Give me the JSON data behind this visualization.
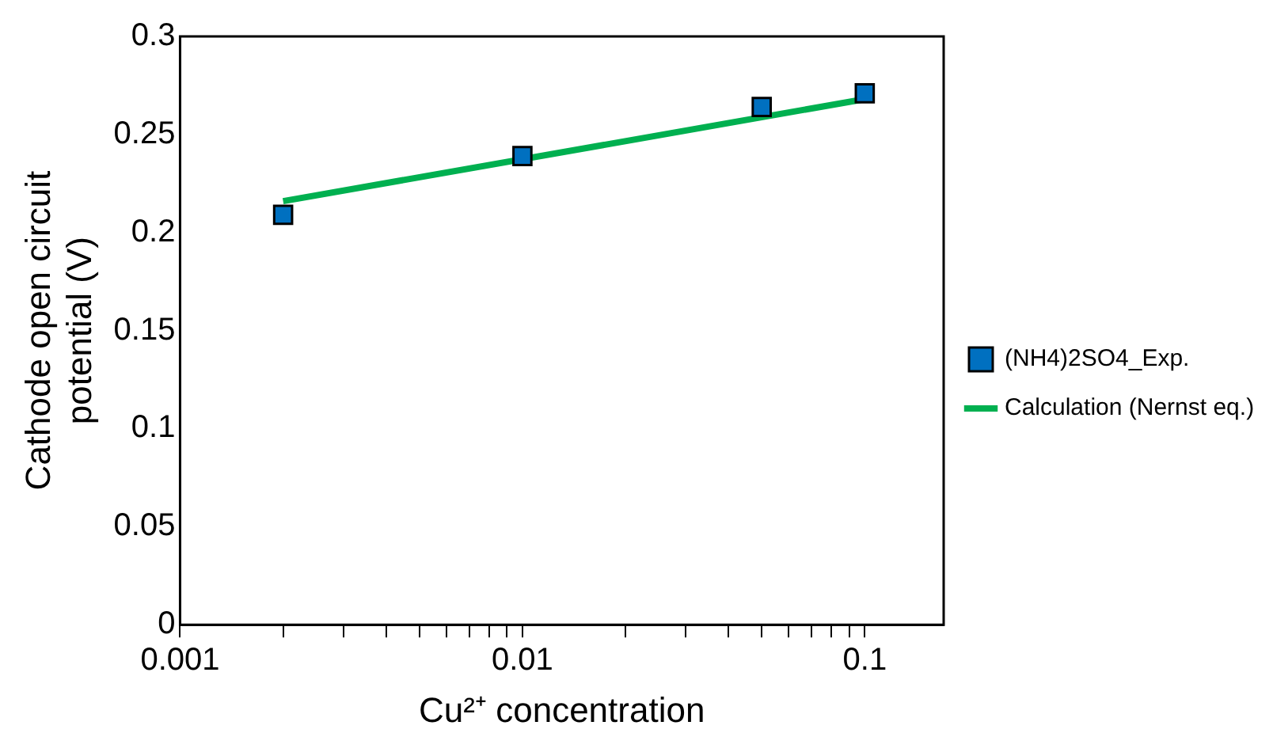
{
  "chart_data": {
    "type": "scatter",
    "xlabel": "Cu²⁺ concentration",
    "ylabel": "Cathode open circuit potential (V)",
    "log": "x",
    "xlim": [
      0.001,
      0.17
    ],
    "ylim": [
      0,
      0.3
    ],
    "xticks": [
      {
        "value": 0.001,
        "label": "0.001"
      },
      {
        "value": 0.002,
        "label": null
      },
      {
        "value": 0.003,
        "label": null
      },
      {
        "value": 0.004,
        "label": null
      },
      {
        "value": 0.005,
        "label": null
      },
      {
        "value": 0.006,
        "label": null
      },
      {
        "value": 0.007,
        "label": null
      },
      {
        "value": 0.008,
        "label": null
      },
      {
        "value": 0.009,
        "label": null
      },
      {
        "value": 0.01,
        "label": "0.01"
      },
      {
        "value": 0.02,
        "label": null
      },
      {
        "value": 0.03,
        "label": null
      },
      {
        "value": 0.04,
        "label": null
      },
      {
        "value": 0.05,
        "label": null
      },
      {
        "value": 0.06,
        "label": null
      },
      {
        "value": 0.07,
        "label": null
      },
      {
        "value": 0.08,
        "label": null
      },
      {
        "value": 0.09,
        "label": null
      },
      {
        "value": 0.1,
        "label": "0.1"
      }
    ],
    "yticks": [
      0,
      0.05,
      0.1,
      0.15,
      0.2,
      0.25,
      0.3
    ],
    "grid": false,
    "legend": "right",
    "series": [
      {
        "name": "(NH4)2SO4_Exp.",
        "marker": "square",
        "color": "#0070c0",
        "x": [
          0.002,
          0.01,
          0.05,
          0.1
        ],
        "values": [
          0.209,
          0.239,
          0.264,
          0.271
        ]
      },
      {
        "name": "Calculation (Nernst eq.)",
        "type": "line",
        "marker": "none",
        "line_style": "solid",
        "color": "#00b050",
        "x": [
          0.002,
          0.1
        ],
        "values": [
          0.216,
          0.268
        ]
      }
    ]
  }
}
